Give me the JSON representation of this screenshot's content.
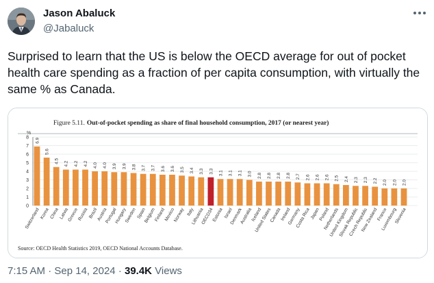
{
  "author": {
    "name": "Jason Abaluck",
    "handle": "@Jabaluck"
  },
  "tweet": {
    "text": "Surprised to learn that the US is below the OECD average for out of pocket health care spending as a fraction of per capita consumption, with virtually the same % as Canada."
  },
  "meta": {
    "time": "7:15 AM",
    "separator1": "·",
    "date": "Sep 14, 2024",
    "separator2": "·",
    "views_count": "39.4K",
    "views_label": "Views"
  },
  "icons": {
    "more": "more-horizontal-icon",
    "avatar": "avatar-portrait"
  },
  "colors": {
    "bar": "#E8923F",
    "highlight": "#C0202A",
    "handle": "#536471",
    "text": "#0f1419"
  },
  "chart_data": {
    "type": "bar",
    "figure_label": "Figure 5.11.",
    "title": "Out-of-pocket spending as share of final household consumption, 2017 (or nearest year)",
    "ylabel": "%",
    "ylim": [
      0,
      8
    ],
    "yticks": [
      0,
      1,
      2,
      3,
      4,
      5,
      6,
      7,
      8
    ],
    "highlight_category": "OECD34",
    "categories": [
      "Switzerland",
      "Korea",
      "China",
      "Latvia",
      "Greece",
      "Russia",
      "Brazil",
      "Austria",
      "Portugal",
      "Hungary",
      "Sweden",
      "Spain",
      "Belgium",
      "Finland",
      "Mexico",
      "Norway",
      "Italy",
      "Lithuania",
      "OECD34",
      "Estonia",
      "Israel",
      "Denmark",
      "Australia",
      "Iceland",
      "United States",
      "Canada",
      "Ireland",
      "Germany",
      "Costa Rica",
      "Japan",
      "Poland",
      "Netherlands",
      "United Kingdom",
      "Slovak Republic",
      "Czech Republic",
      "New Zealand",
      "France",
      "Luxembourg",
      "Slovenia"
    ],
    "values": [
      6.9,
      5.6,
      4.5,
      4.2,
      4.2,
      4.2,
      4.0,
      4.0,
      3.9,
      3.9,
      3.8,
      3.7,
      3.7,
      3.6,
      3.6,
      3.5,
      3.4,
      3.3,
      3.3,
      3.1,
      3.1,
      3.1,
      3.0,
      2.8,
      2.8,
      2.8,
      2.8,
      2.7,
      2.6,
      2.6,
      2.6,
      2.5,
      2.4,
      2.3,
      2.3,
      2.2,
      2.0,
      2.0,
      2.0
    ],
    "value_labels": [
      "6.9",
      "5.6",
      "4.5",
      "4.2",
      "4.2",
      "4.2",
      "4.0",
      "4.0",
      "3.9",
      "3.9",
      "3.8",
      "3.7",
      "3.7",
      "3.6",
      "3.6",
      "3.5",
      "3.4",
      "3.3",
      "3.3",
      "3.1",
      "3.1",
      "3.1",
      "3.0",
      "2.8",
      "2.8",
      "2.8",
      "2.8",
      "2.7",
      "2.6",
      "2.6",
      "2.6",
      "2.5",
      "2.4",
      "2.3",
      "2.3",
      "2.2",
      "2.0",
      "2.0",
      "2.0"
    ],
    "grid": true,
    "source": "Source: OECD Health Statistics 2019, OECD National Accounts Database."
  }
}
